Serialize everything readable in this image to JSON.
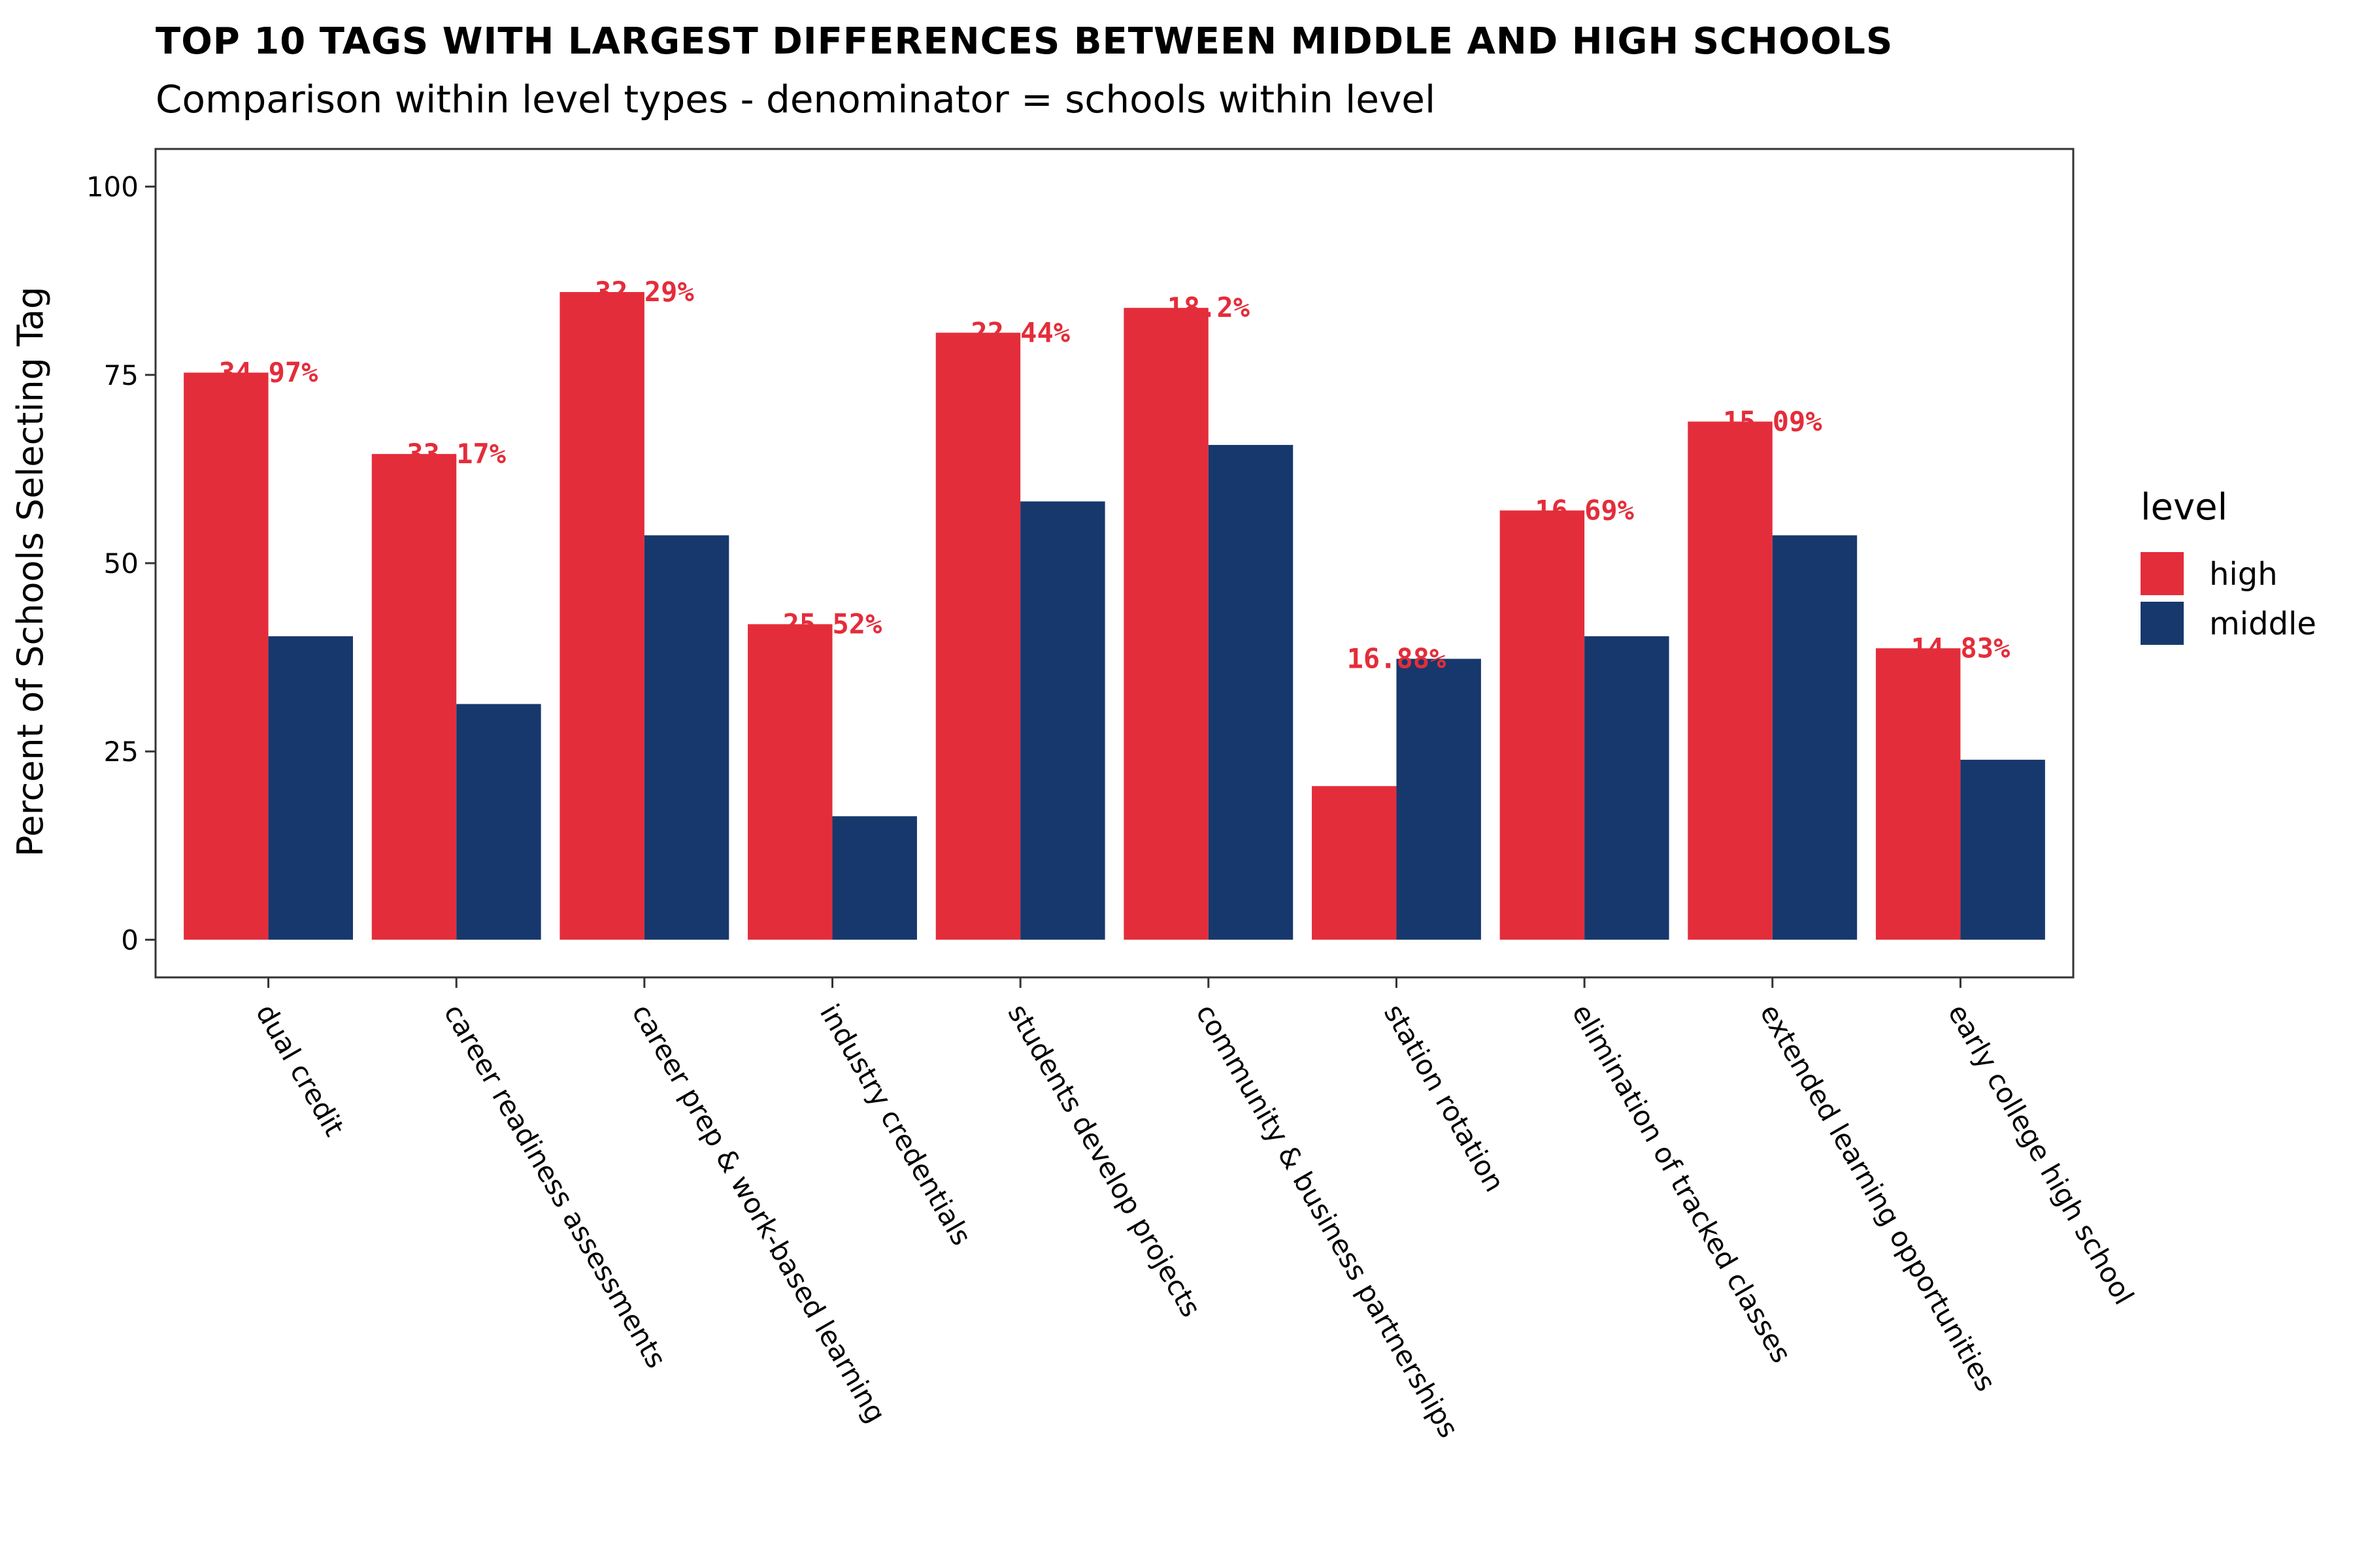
{
  "chart_data": {
    "type": "bar",
    "title": "TOP 10 TAGS WITH LARGEST DIFFERENCES BETWEEN MIDDLE AND HIGH SCHOOLS",
    "subtitle": "Comparison within level types - denominator = schools within level",
    "xlabel": "",
    "ylabel": "Percent of Schools Selecting Tag",
    "ylim": [
      -5,
      105
    ],
    "yticks": [
      0,
      25,
      50,
      75,
      100
    ],
    "grid": false,
    "categories": [
      "dual credit",
      "career readiness assessments",
      "career prep & work-based learning",
      "industry credentials",
      "students develop projects",
      "community & business partnerships",
      "station rotation",
      "elimination of tracked classes",
      "extended learning opportunities",
      "early college high school"
    ],
    "series": [
      {
        "name": "high",
        "color": "#E42D3A",
        "values": [
          75.3,
          64.5,
          86.0,
          41.9,
          80.6,
          83.9,
          20.4,
          57.0,
          68.8,
          38.7
        ]
      },
      {
        "name": "middle",
        "color": "#17386C",
        "values": [
          40.3,
          31.3,
          53.7,
          16.4,
          58.2,
          65.7,
          37.3,
          40.3,
          53.7,
          23.9
        ]
      }
    ],
    "difference_labels": [
      "34.97%",
      "33.17%",
      "32.29%",
      "25.52%",
      "22.44%",
      "18.2%",
      "16.88%",
      "16.69%",
      "15.09%",
      "14.83%"
    ],
    "difference_label_color": "#E42D3A",
    "legend": {
      "title": "level",
      "position": "right",
      "entries": [
        "high",
        "middle"
      ]
    },
    "panel_border": true
  }
}
